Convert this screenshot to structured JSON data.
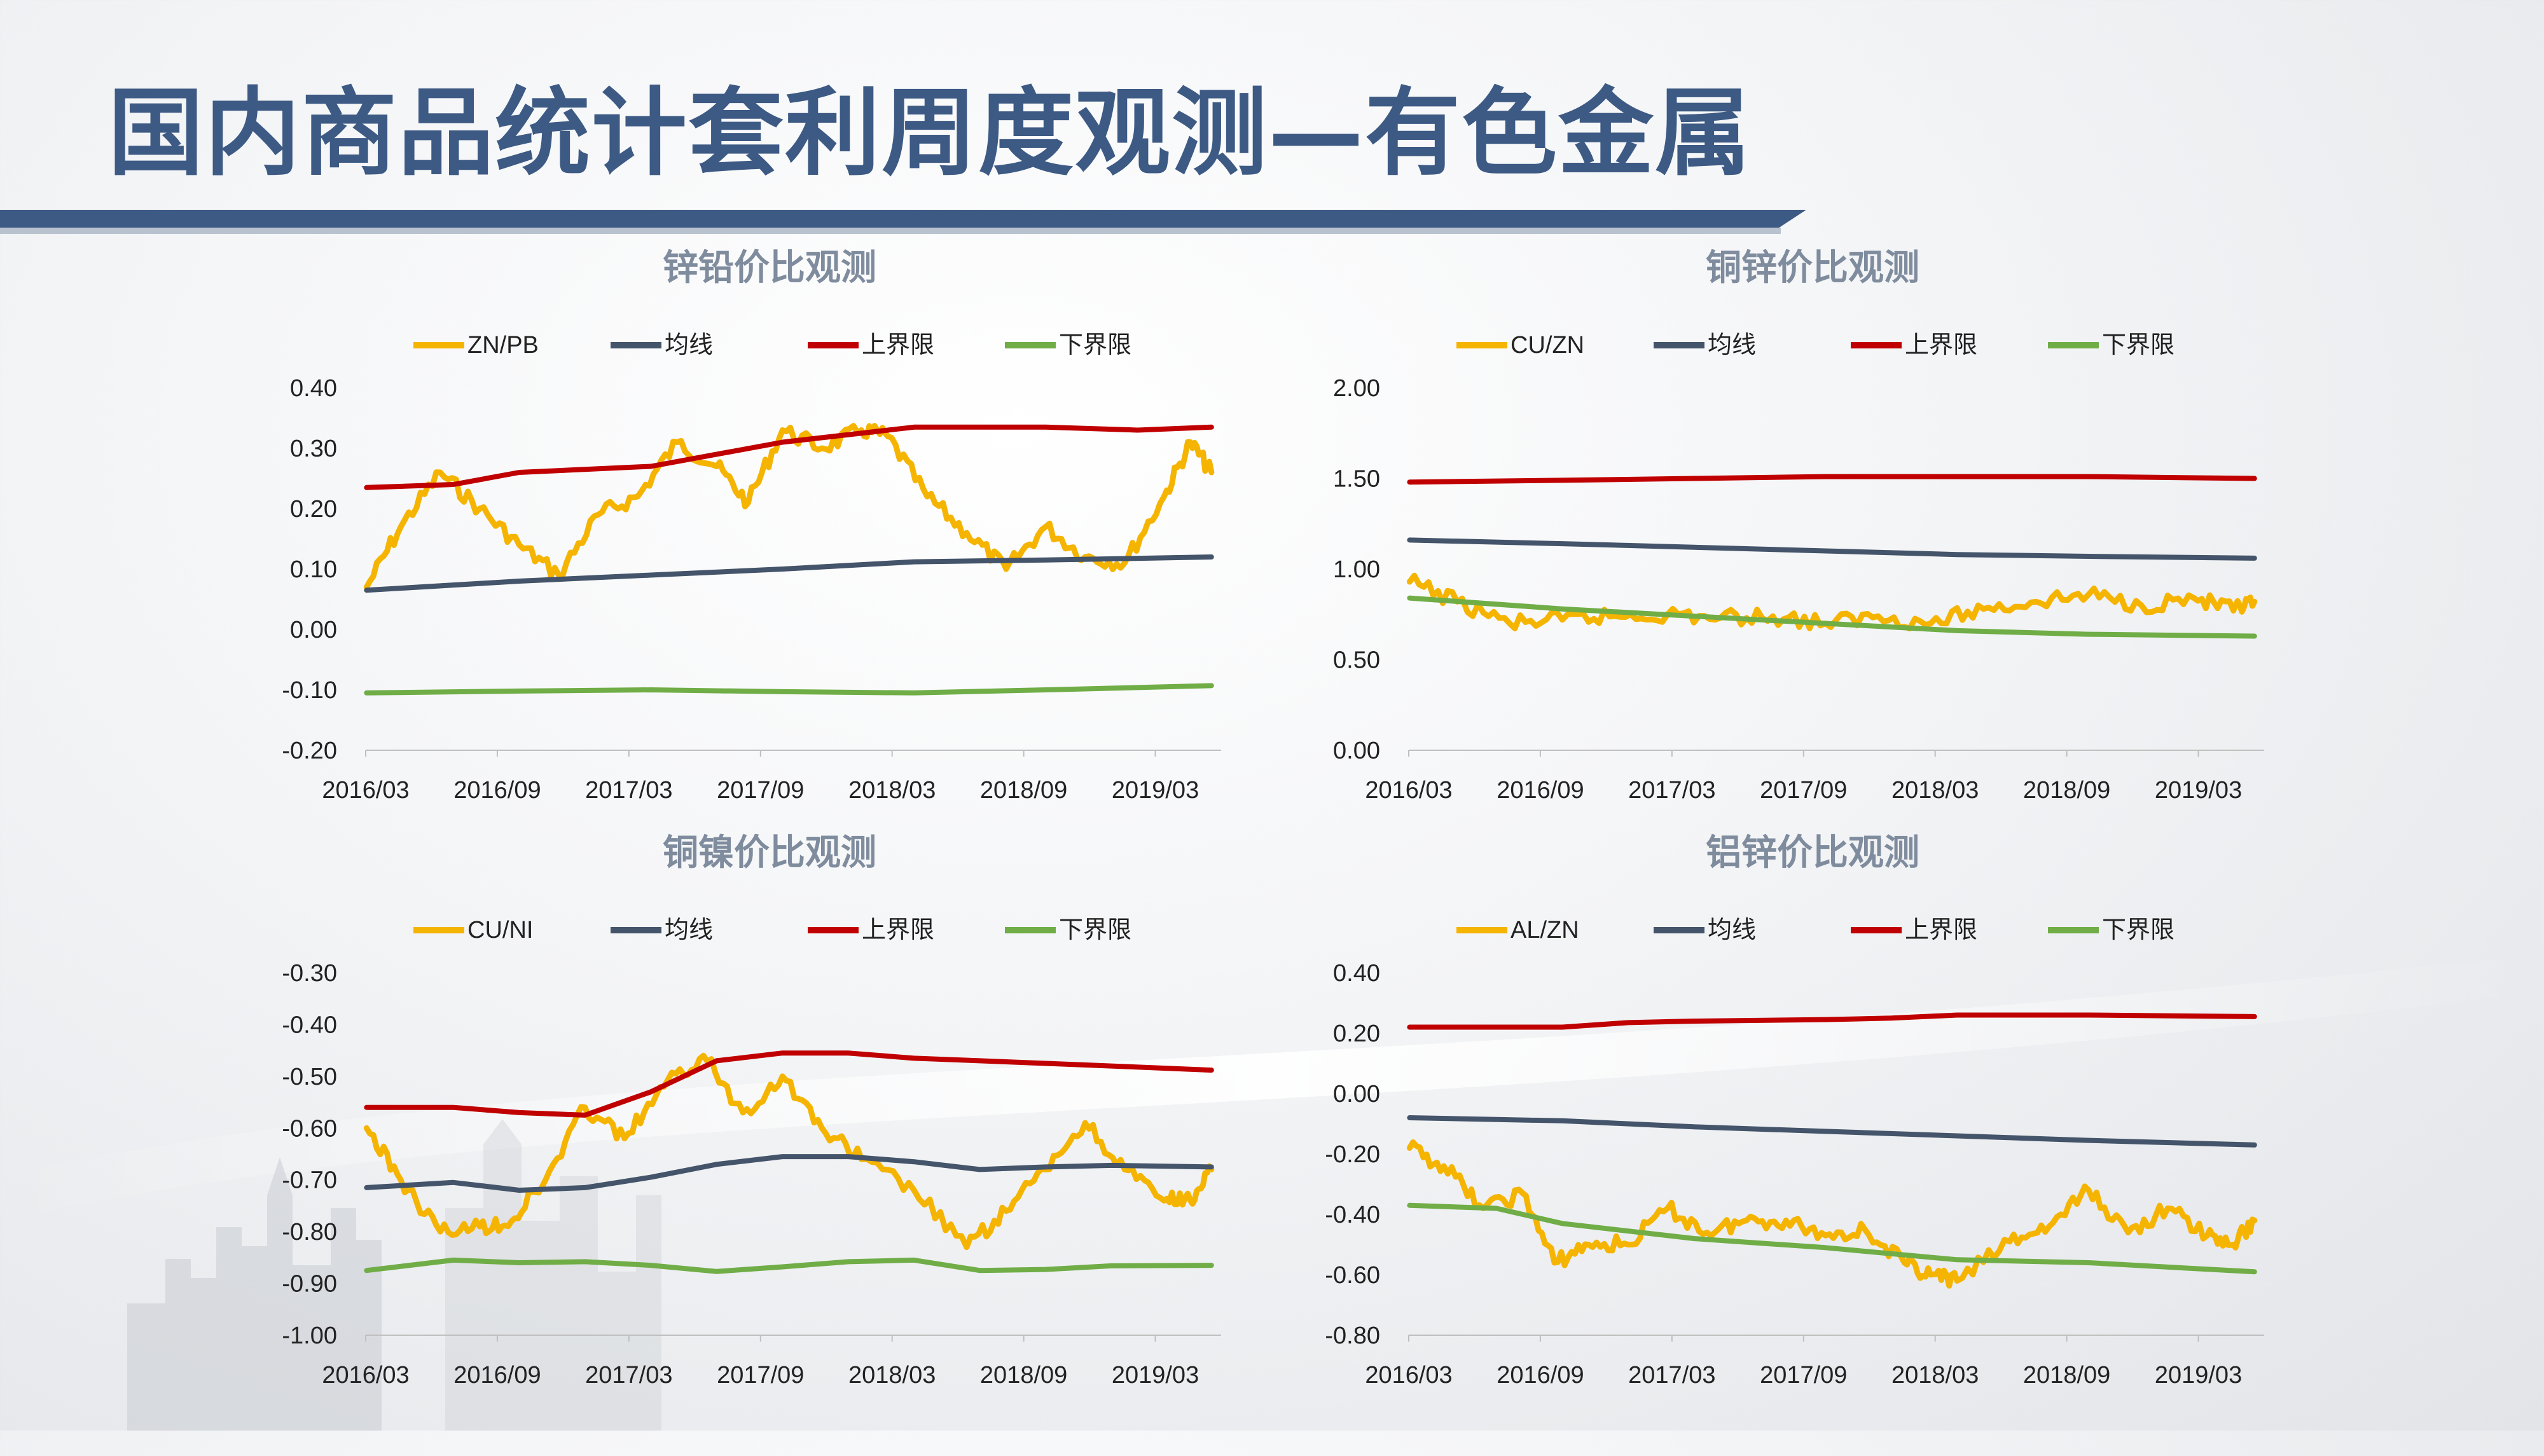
{
  "title": "国内商品统计套利周度观测—有色金属",
  "colors": {
    "title": "#3d5a84",
    "band": "#3d5a84",
    "ratio": "#f5b400",
    "mean": "#44546a",
    "upper": "#c00000",
    "lower": "#70ad47",
    "chart_title": "#7f8c9e"
  },
  "chart_data": [
    {
      "type": "line",
      "title": "锌铅价比观测",
      "x_ticks": [
        "2016/03",
        "2016/09",
        "2017/03",
        "2017/09",
        "2018/03",
        "2018/09",
        "2019/03"
      ],
      "x_range": [
        "2016/03",
        "2019/06"
      ],
      "ylim": [
        -0.2,
        0.4
      ],
      "y_ticks": [
        "0.40",
        "0.30",
        "0.20",
        "0.10",
        "0.00",
        "-0.10",
        "-0.20"
      ],
      "grid": false,
      "legend": "top",
      "series": [
        {
          "name": "ZN/PB",
          "color": "#f5b400",
          "x": [
            2016.17,
            2016.3,
            2016.45,
            2016.6,
            2016.75,
            2016.9,
            2017.05,
            2017.2,
            2017.35,
            2017.5,
            2017.62,
            2017.75,
            2017.9,
            2018.05,
            2018.15,
            2018.3,
            2018.45,
            2018.6,
            2018.75,
            2018.9,
            2019.05,
            2019.2,
            2019.3,
            2019.38
          ],
          "y": [
            0.07,
            0.17,
            0.26,
            0.2,
            0.14,
            0.09,
            0.19,
            0.22,
            0.31,
            0.27,
            0.21,
            0.33,
            0.3,
            0.33,
            0.32,
            0.22,
            0.16,
            0.1,
            0.17,
            0.12,
            0.11,
            0.22,
            0.31,
            0.26
          ]
        },
        {
          "name": "均线",
          "color": "#44546a",
          "x": [
            2016.17,
            2016.75,
            2017.25,
            2017.75,
            2018.25,
            2018.75,
            2019.38
          ],
          "y": [
            0.065,
            0.08,
            0.09,
            0.1,
            0.112,
            0.115,
            0.12
          ]
        },
        {
          "name": "上界限",
          "color": "#c00000",
          "x": [
            2016.17,
            2016.5,
            2016.75,
            2017.25,
            2017.75,
            2018.25,
            2018.75,
            2019.1,
            2019.38
          ],
          "y": [
            0.235,
            0.24,
            0.26,
            0.27,
            0.31,
            0.335,
            0.335,
            0.33,
            0.335
          ]
        },
        {
          "name": "下界限",
          "color": "#70ad47",
          "x": [
            2016.17,
            2016.75,
            2017.25,
            2017.75,
            2018.25,
            2018.75,
            2019.38
          ],
          "y": [
            -0.105,
            -0.102,
            -0.1,
            -0.103,
            -0.105,
            -0.1,
            -0.093
          ]
        }
      ]
    },
    {
      "type": "line",
      "title": "铜锌价比观测",
      "x_ticks": [
        "2016/03",
        "2016/09",
        "2017/03",
        "2017/09",
        "2018/03",
        "2018/09",
        "2019/03"
      ],
      "x_range": [
        "2016/03",
        "2019/06"
      ],
      "ylim": [
        0,
        2
      ],
      "y_ticks": [
        "2.00",
        "1.50",
        "1.00",
        "0.50",
        "0.00"
      ],
      "grid": false,
      "legend": "top",
      "series": [
        {
          "name": "CU/ZN",
          "color": "#f5b400",
          "x": [
            2016.17,
            2016.35,
            2016.55,
            2016.75,
            2016.95,
            2017.15,
            2017.35,
            2017.55,
            2017.75,
            2017.95,
            2018.15,
            2018.35,
            2018.55,
            2018.75,
            2018.95,
            2019.15,
            2019.3,
            2019.38
          ],
          "y": [
            0.93,
            0.82,
            0.7,
            0.72,
            0.74,
            0.75,
            0.73,
            0.74,
            0.7,
            0.74,
            0.7,
            0.78,
            0.82,
            0.86,
            0.8,
            0.84,
            0.77,
            0.82
          ]
        },
        {
          "name": "均线",
          "color": "#44546a",
          "x": [
            2016.17,
            2016.75,
            2017.25,
            2017.75,
            2018.25,
            2018.75,
            2019.38
          ],
          "y": [
            1.16,
            1.14,
            1.12,
            1.1,
            1.08,
            1.07,
            1.06
          ]
        },
        {
          "name": "上界限",
          "color": "#c00000",
          "x": [
            2016.17,
            2016.75,
            2017.25,
            2017.75,
            2018.25,
            2018.75,
            2019.38
          ],
          "y": [
            1.48,
            1.49,
            1.5,
            1.51,
            1.51,
            1.51,
            1.5
          ]
        },
        {
          "name": "下界限",
          "color": "#70ad47",
          "x": [
            2016.17,
            2016.75,
            2017.25,
            2017.75,
            2018.25,
            2018.75,
            2019.38
          ],
          "y": [
            0.84,
            0.78,
            0.74,
            0.7,
            0.66,
            0.64,
            0.63
          ]
        }
      ]
    },
    {
      "type": "line",
      "title": "铜镍价比观测",
      "x_ticks": [
        "2016/03",
        "2016/09",
        "2017/03",
        "2017/09",
        "2018/03",
        "2018/09",
        "2019/03"
      ],
      "x_range": [
        "2016/03",
        "2019/06"
      ],
      "ylim": [
        -1.0,
        -0.3
      ],
      "y_ticks": [
        "-0.30",
        "-0.40",
        "-0.50",
        "-0.60",
        "-0.70",
        "-0.80",
        "-0.90",
        "-1.00"
      ],
      "grid": false,
      "legend": "top",
      "series": [
        {
          "name": "CU/NI",
          "color": "#f5b400",
          "x": [
            2016.17,
            2016.3,
            2016.45,
            2016.6,
            2016.72,
            2016.85,
            2017.0,
            2017.15,
            2017.3,
            2017.45,
            2017.6,
            2017.75,
            2017.9,
            2018.05,
            2018.25,
            2018.45,
            2018.6,
            2018.75,
            2018.9,
            2019.05,
            2019.2,
            2019.3,
            2019.38
          ],
          "y": [
            -0.6,
            -0.7,
            -0.8,
            -0.79,
            -0.78,
            -0.7,
            -0.56,
            -0.62,
            -0.52,
            -0.46,
            -0.57,
            -0.5,
            -0.6,
            -0.66,
            -0.72,
            -0.83,
            -0.76,
            -0.68,
            -0.59,
            -0.68,
            -0.74,
            -0.74,
            -0.68
          ]
        },
        {
          "name": "均线",
          "color": "#44546a",
          "x": [
            2016.17,
            2016.5,
            2016.75,
            2017.0,
            2017.25,
            2017.5,
            2017.75,
            2018.0,
            2018.25,
            2018.5,
            2018.75,
            2019.0,
            2019.38
          ],
          "y": [
            -0.715,
            -0.705,
            -0.72,
            -0.715,
            -0.695,
            -0.67,
            -0.655,
            -0.655,
            -0.665,
            -0.68,
            -0.675,
            -0.672,
            -0.675
          ]
        },
        {
          "name": "上界限",
          "color": "#c00000",
          "x": [
            2016.17,
            2016.5,
            2016.75,
            2017.0,
            2017.25,
            2017.5,
            2017.75,
            2018.0,
            2018.25,
            2018.5,
            2018.75,
            2019.0,
            2019.38
          ],
          "y": [
            -0.56,
            -0.56,
            -0.57,
            -0.575,
            -0.53,
            -0.47,
            -0.455,
            -0.455,
            -0.465,
            -0.47,
            -0.475,
            -0.48,
            -0.488
          ]
        },
        {
          "name": "下界限",
          "color": "#70ad47",
          "x": [
            2016.17,
            2016.5,
            2016.75,
            2017.0,
            2017.25,
            2017.5,
            2017.75,
            2018.0,
            2018.25,
            2018.5,
            2018.75,
            2019.0,
            2019.38
          ],
          "y": [
            -0.875,
            -0.855,
            -0.86,
            -0.858,
            -0.865,
            -0.877,
            -0.868,
            -0.858,
            -0.855,
            -0.875,
            -0.873,
            -0.866,
            -0.865
          ]
        }
      ]
    },
    {
      "type": "line",
      "title": "铝锌价比观测",
      "x_ticks": [
        "2016/03",
        "2016/09",
        "2017/03",
        "2017/09",
        "2018/03",
        "2018/09",
        "2019/03"
      ],
      "x_range": [
        "2016/03",
        "2019/06"
      ],
      "ylim": [
        -0.8,
        0.4
      ],
      "y_ticks": [
        "0.40",
        "0.20",
        "0.00",
        "-0.20",
        "-0.40",
        "-0.60",
        "-0.80"
      ],
      "grid": false,
      "legend": "top",
      "series": [
        {
          "name": "AL/ZN",
          "color": "#f5b400",
          "x": [
            2016.17,
            2016.3,
            2016.45,
            2016.6,
            2016.72,
            2016.85,
            2017.0,
            2017.15,
            2017.3,
            2017.45,
            2017.6,
            2017.75,
            2017.9,
            2018.05,
            2018.15,
            2018.25,
            2018.45,
            2018.6,
            2018.75,
            2018.9,
            2019.05,
            2019.2,
            2019.3,
            2019.38
          ],
          "y": [
            -0.18,
            -0.24,
            -0.38,
            -0.33,
            -0.56,
            -0.5,
            -0.5,
            -0.38,
            -0.46,
            -0.42,
            -0.42,
            -0.47,
            -0.45,
            -0.56,
            -0.6,
            -0.62,
            -0.49,
            -0.44,
            -0.32,
            -0.46,
            -0.38,
            -0.47,
            -0.5,
            -0.42
          ]
        },
        {
          "name": "均线",
          "color": "#44546a",
          "x": [
            2016.17,
            2016.75,
            2017.25,
            2017.75,
            2018.25,
            2018.75,
            2019.38
          ],
          "y": [
            -0.08,
            -0.09,
            -0.11,
            -0.125,
            -0.14,
            -0.155,
            -0.17
          ]
        },
        {
          "name": "上界限",
          "color": "#c00000",
          "x": [
            2016.17,
            2016.5,
            2016.75,
            2017.0,
            2017.25,
            2017.75,
            2018.0,
            2018.25,
            2018.75,
            2019.38
          ],
          "y": [
            0.22,
            0.22,
            0.22,
            0.235,
            0.24,
            0.245,
            0.25,
            0.26,
            0.26,
            0.255
          ]
        },
        {
          "name": "下界限",
          "color": "#70ad47",
          "x": [
            2016.17,
            2016.5,
            2016.75,
            2017.25,
            2017.75,
            2018.25,
            2018.75,
            2019.38
          ],
          "y": [
            -0.37,
            -0.38,
            -0.43,
            -0.48,
            -0.51,
            -0.55,
            -0.56,
            -0.59
          ]
        }
      ]
    }
  ]
}
